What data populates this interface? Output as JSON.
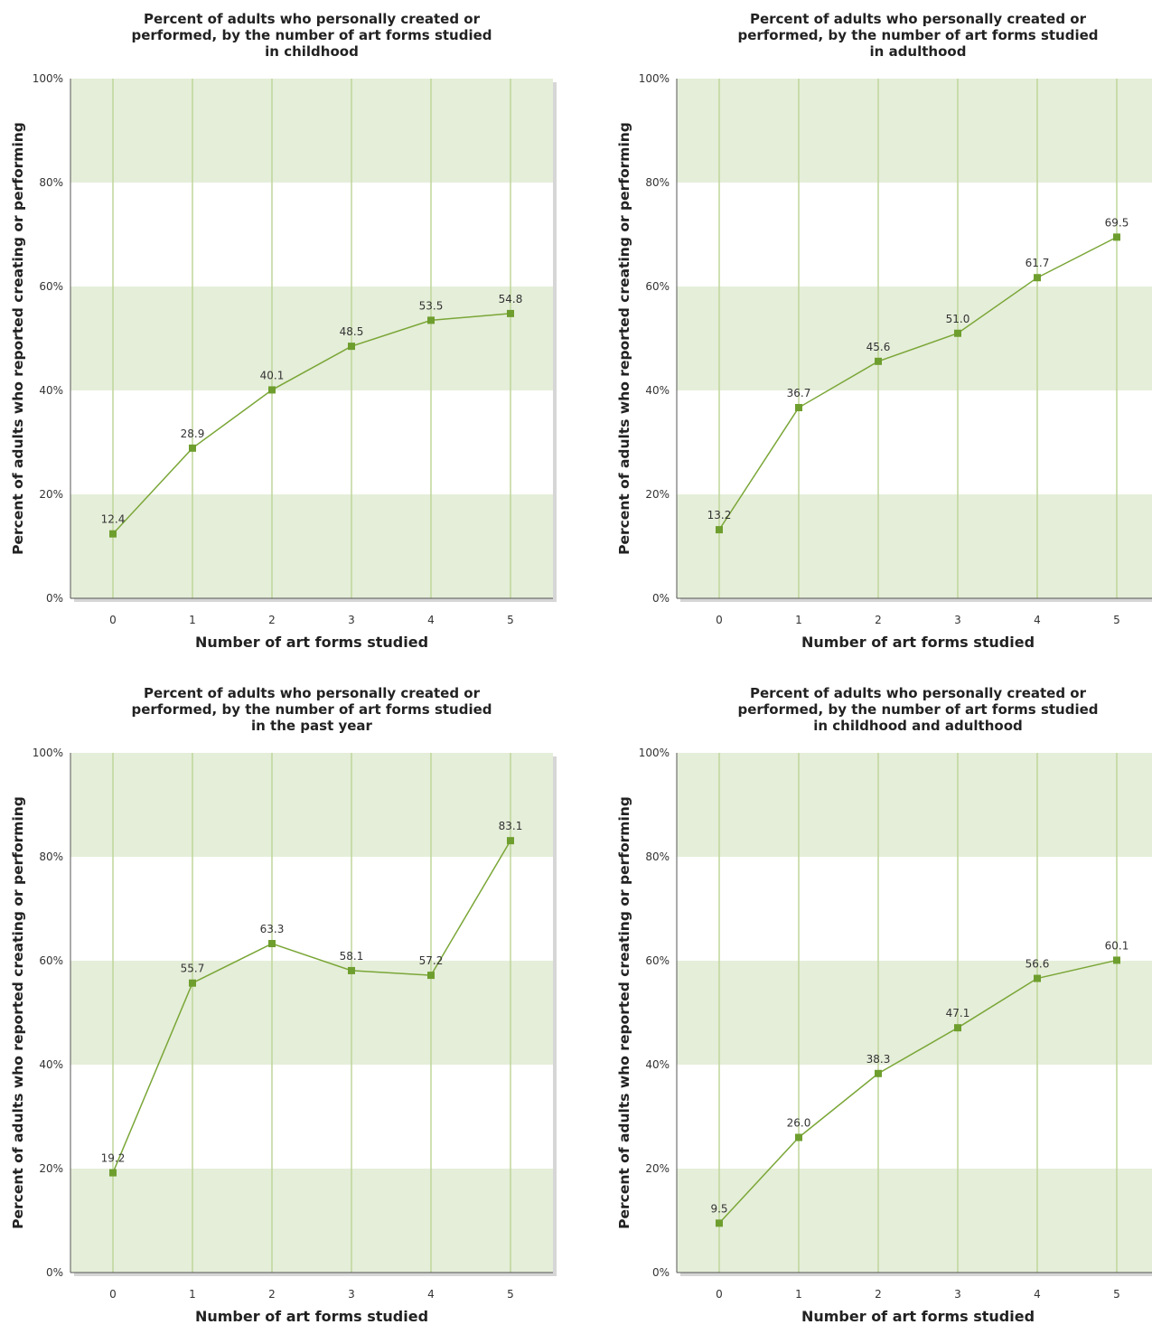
{
  "colors": {
    "band": "#e5eed9",
    "gridline": "#bfd59a",
    "line": "#7aa637",
    "marker": "#6e9e2e",
    "frame": "#555555"
  },
  "chart_data": [
    {
      "type": "line",
      "title_lines": [
        "Percent of adults who personally created or",
        "performed, by the number of art forms studied",
        "in childhood"
      ],
      "xlabel": "Number of art forms studied",
      "ylabel": "Percent of adults who reported creating or performing",
      "categories": [
        "0",
        "1",
        "2",
        "3",
        "4",
        "5"
      ],
      "values": [
        12.4,
        28.9,
        40.1,
        48.5,
        53.5,
        54.8
      ],
      "value_labels": [
        "12.4",
        "28.9",
        "40.1",
        "48.5",
        "53.5",
        "54.8"
      ],
      "ylim": [
        0,
        100
      ],
      "yticks": [
        "0%",
        "20%",
        "40%",
        "60%",
        "80%",
        "100%"
      ],
      "legend": "none"
    },
    {
      "type": "line",
      "title_lines": [
        "Percent of adults who personally created or",
        "performed, by the number of art forms studied",
        "in adulthood"
      ],
      "xlabel": "Number of art forms studied",
      "ylabel": "Percent of adults who reported creating or performing",
      "categories": [
        "0",
        "1",
        "2",
        "3",
        "4",
        "5"
      ],
      "values": [
        13.2,
        36.7,
        45.6,
        51.0,
        61.7,
        69.5
      ],
      "value_labels": [
        "13.2",
        "36.7",
        "45.6",
        "51.0",
        "61.7",
        "69.5"
      ],
      "ylim": [
        0,
        100
      ],
      "yticks": [
        "0%",
        "20%",
        "40%",
        "60%",
        "80%",
        "100%"
      ],
      "legend": "none"
    },
    {
      "type": "line",
      "title_lines": [
        "Percent of adults who personally created or",
        "performed, by the number of art forms studied",
        "in the past year"
      ],
      "xlabel": "Number of art forms studied",
      "ylabel": "Percent of adults who reported creating or performing",
      "categories": [
        "0",
        "1",
        "2",
        "3",
        "4",
        "5"
      ],
      "values": [
        19.2,
        55.7,
        63.3,
        58.1,
        57.2,
        83.1
      ],
      "value_labels": [
        "19.2",
        "55.7",
        "63.3",
        "58.1",
        "57.2",
        "83.1"
      ],
      "ylim": [
        0,
        100
      ],
      "yticks": [
        "0%",
        "20%",
        "40%",
        "60%",
        "80%",
        "100%"
      ],
      "legend": "none"
    },
    {
      "type": "line",
      "title_lines": [
        "Percent of adults who personally created or",
        "performed, by the number of art forms studied",
        "in childhood and adulthood"
      ],
      "xlabel": "Number of art forms studied",
      "ylabel": "Percent of adults who reported creating or performing",
      "categories": [
        "0",
        "1",
        "2",
        "3",
        "4",
        "5"
      ],
      "values": [
        9.5,
        26.0,
        38.3,
        47.1,
        56.6,
        60.1
      ],
      "value_labels": [
        "9.5",
        "26.0",
        "38.3",
        "47.1",
        "56.6",
        "60.1"
      ],
      "ylim": [
        0,
        100
      ],
      "yticks": [
        "0%",
        "20%",
        "40%",
        "60%",
        "80%",
        "100%"
      ],
      "legend": "none"
    }
  ]
}
